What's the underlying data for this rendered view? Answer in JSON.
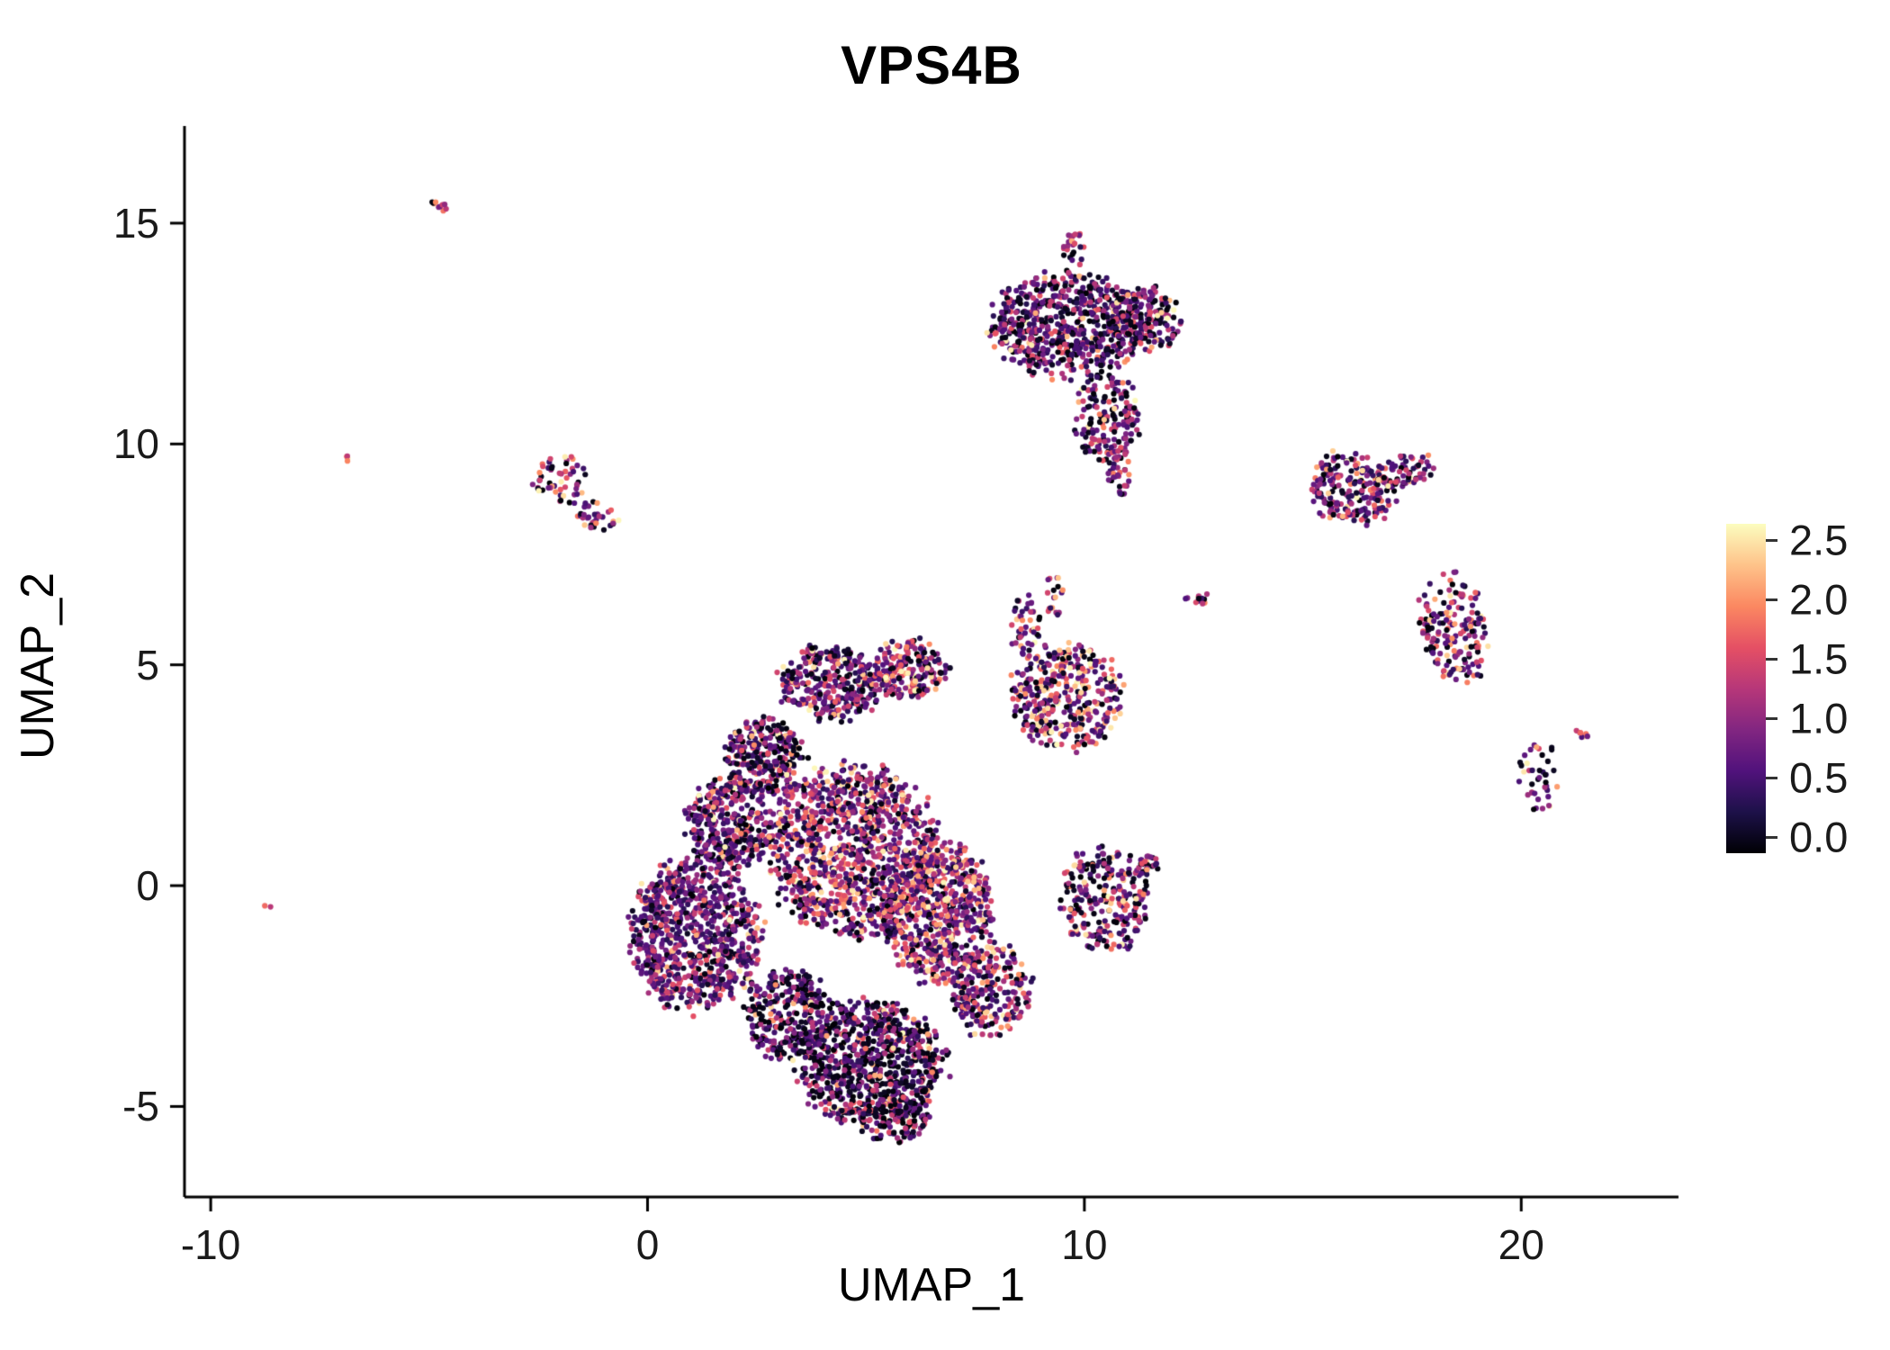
{
  "title": "VPS4B",
  "axes": {
    "x": {
      "label": "UMAP_1",
      "ticks": [
        {
          "value": -10,
          "label": "-10"
        },
        {
          "value": 0,
          "label": "0"
        },
        {
          "value": 10,
          "label": "10"
        },
        {
          "value": 20,
          "label": "20"
        }
      ]
    },
    "y": {
      "label": "UMAP_2",
      "ticks": [
        {
          "value": -5,
          "label": "-5"
        },
        {
          "value": 0,
          "label": "0"
        },
        {
          "value": 5,
          "label": "5"
        },
        {
          "value": 10,
          "label": "10"
        },
        {
          "value": 15,
          "label": "15"
        }
      ]
    }
  },
  "legend": {
    "min": 0.0,
    "max": 2.5,
    "tick_labels": [
      "2.5",
      "2.0",
      "1.5",
      "1.0",
      "0.5",
      "0.0"
    ],
    "tick_values": [
      2.5,
      2.0,
      1.5,
      1.0,
      0.5,
      0.0
    ]
  },
  "colormap": [
    [
      0.0,
      "#000004"
    ],
    [
      0.125,
      "#1d1149"
    ],
    [
      0.25,
      "#51127c"
    ],
    [
      0.375,
      "#822681"
    ],
    [
      0.5,
      "#b73779"
    ],
    [
      0.625,
      "#e55064"
    ],
    [
      0.75,
      "#fb8861"
    ],
    [
      0.875,
      "#fec38a"
    ],
    [
      1.0,
      "#fcfdbf"
    ]
  ],
  "chart_data": {
    "type": "scatter",
    "title": "VPS4B",
    "xlabel": "UMAP_1",
    "ylabel": "UMAP_2",
    "xlim": [
      -10.6,
      23.6
    ],
    "ylim": [
      -7.05,
      17.2
    ],
    "grid": false,
    "legend_position": "right",
    "color_scale": {
      "name": "magma",
      "domain": [
        0.0,
        2.5
      ],
      "ticks": [
        0.0,
        0.5,
        1.0,
        1.5,
        2.0,
        2.5
      ]
    },
    "point_radius_px": 3.1,
    "clusters": [
      {
        "id": "streak-top-left",
        "cx": -4.75,
        "cy": 15.4,
        "rx": 0.28,
        "ry": 0.09,
        "rot": -35,
        "n": 10,
        "mix": {
          "zero": 0.05,
          "low": 0.15,
          "mid": 0.4,
          "high": 0.4
        }
      },
      {
        "id": "dot-left-upper",
        "cx": -6.85,
        "cy": 9.7,
        "rx": 0.12,
        "ry": 0.1,
        "rot": 0,
        "n": 4,
        "mix": {
          "zero": 0.0,
          "low": 0.1,
          "mid": 0.5,
          "high": 0.4
        }
      },
      {
        "id": "dot-left-lower",
        "cx": -8.7,
        "cy": -0.45,
        "rx": 0.08,
        "ry": 0.06,
        "rot": 0,
        "n": 2,
        "mix": {
          "zero": 0.0,
          "low": 0.0,
          "mid": 0.7,
          "high": 0.3
        }
      },
      {
        "id": "small-left-a",
        "cx": -1.95,
        "cy": 9.2,
        "rx": 0.65,
        "ry": 0.55,
        "rot": 20,
        "n": 55,
        "mix": {
          "zero": 0.2,
          "low": 0.3,
          "mid": 0.3,
          "high": 0.2
        }
      },
      {
        "id": "small-left-b",
        "cx": -1.15,
        "cy": 8.35,
        "rx": 0.45,
        "ry": 0.35,
        "rot": 0,
        "n": 35,
        "mix": {
          "zero": 0.15,
          "low": 0.3,
          "mid": 0.35,
          "high": 0.2
        }
      },
      {
        "id": "top-main",
        "cx": 9.6,
        "cy": 12.7,
        "rx": 1.75,
        "ry": 1.15,
        "rot": 0,
        "n": 650,
        "mix": {
          "zero": 0.3,
          "low": 0.35,
          "mid": 0.28,
          "high": 0.07
        }
      },
      {
        "id": "top-right",
        "cx": 11.4,
        "cy": 12.8,
        "rx": 0.8,
        "ry": 0.75,
        "rot": 0,
        "n": 160,
        "mix": {
          "zero": 0.35,
          "low": 0.3,
          "mid": 0.28,
          "high": 0.07
        }
      },
      {
        "id": "top-lower-ext",
        "cx": 10.5,
        "cy": 10.6,
        "rx": 0.75,
        "ry": 1.0,
        "rot": 0,
        "n": 170,
        "mix": {
          "zero": 0.3,
          "low": 0.3,
          "mid": 0.3,
          "high": 0.1
        }
      },
      {
        "id": "top-spur",
        "cx": 9.75,
        "cy": 14.4,
        "rx": 0.25,
        "ry": 0.45,
        "rot": 0,
        "n": 25,
        "mix": {
          "zero": 0.2,
          "low": 0.3,
          "mid": 0.4,
          "high": 0.1
        }
      },
      {
        "id": "top-tail",
        "cx": 10.85,
        "cy": 9.3,
        "rx": 0.3,
        "ry": 0.5,
        "rot": 0,
        "n": 30,
        "mix": {
          "zero": 0.25,
          "low": 0.35,
          "mid": 0.3,
          "high": 0.1
        }
      },
      {
        "id": "streak-mid",
        "cx": 12.6,
        "cy": 6.5,
        "rx": 0.4,
        "ry": 0.12,
        "rot": 5,
        "n": 12,
        "mix": {
          "zero": 0.05,
          "low": 0.2,
          "mid": 0.45,
          "high": 0.3
        }
      },
      {
        "id": "right-upper",
        "cx": 16.1,
        "cy": 9.0,
        "rx": 1.0,
        "ry": 0.8,
        "rot": -15,
        "n": 200,
        "mix": {
          "zero": 0.18,
          "low": 0.32,
          "mid": 0.33,
          "high": 0.17
        }
      },
      {
        "id": "right-upper-arm",
        "cx": 17.3,
        "cy": 9.4,
        "rx": 0.8,
        "ry": 0.4,
        "rot": 15,
        "n": 70,
        "mix": {
          "zero": 0.18,
          "low": 0.32,
          "mid": 0.33,
          "high": 0.17
        }
      },
      {
        "id": "right-mid",
        "cx": 18.45,
        "cy": 5.8,
        "rx": 0.75,
        "ry": 1.25,
        "rot": 10,
        "n": 170,
        "mix": {
          "zero": 0.2,
          "low": 0.33,
          "mid": 0.32,
          "high": 0.15
        }
      },
      {
        "id": "right-lower-sparse",
        "cx": 20.4,
        "cy": 2.4,
        "rx": 0.45,
        "ry": 0.85,
        "rot": 0,
        "n": 40,
        "mix": {
          "zero": 0.25,
          "low": 0.3,
          "mid": 0.3,
          "high": 0.15
        }
      },
      {
        "id": "right-streak",
        "cx": 21.35,
        "cy": 3.45,
        "rx": 0.25,
        "ry": 0.08,
        "rot": -35,
        "n": 8,
        "mix": {
          "zero": 0.0,
          "low": 0.1,
          "mid": 0.4,
          "high": 0.5
        }
      },
      {
        "id": "mid-right-upper",
        "cx": 9.6,
        "cy": 4.3,
        "rx": 1.25,
        "ry": 1.2,
        "rot": 0,
        "n": 380,
        "mix": {
          "zero": 0.15,
          "low": 0.27,
          "mid": 0.33,
          "high": 0.25
        }
      },
      {
        "id": "mid-right-spur",
        "cx": 8.65,
        "cy": 5.9,
        "rx": 0.35,
        "ry": 0.75,
        "rot": 0,
        "n": 45,
        "mix": {
          "zero": 0.1,
          "low": 0.3,
          "mid": 0.4,
          "high": 0.2
        }
      },
      {
        "id": "sparse-band",
        "cx": 9.3,
        "cy": 6.6,
        "rx": 0.25,
        "ry": 0.5,
        "rot": 0,
        "n": 18,
        "mix": {
          "zero": 0.1,
          "low": 0.3,
          "mid": 0.4,
          "high": 0.2
        }
      },
      {
        "id": "mid-right-lower",
        "cx": 10.45,
        "cy": -0.35,
        "rx": 0.95,
        "ry": 1.15,
        "rot": 15,
        "n": 260,
        "mix": {
          "zero": 0.25,
          "low": 0.3,
          "mid": 0.3,
          "high": 0.15
        }
      },
      {
        "id": "mid-right-lower-arm",
        "cx": 11.3,
        "cy": 0.45,
        "rx": 0.4,
        "ry": 0.3,
        "rot": 0,
        "n": 35,
        "mix": {
          "zero": 0.25,
          "low": 0.3,
          "mid": 0.3,
          "high": 0.15
        }
      },
      {
        "id": "main-left-lobe",
        "cx": 1.1,
        "cy": -1.1,
        "rx": 1.45,
        "ry": 1.7,
        "rot": 0,
        "n": 850,
        "mix": {
          "zero": 0.12,
          "low": 0.5,
          "mid": 0.32,
          "high": 0.06
        }
      },
      {
        "id": "main-left-top",
        "cx": 1.9,
        "cy": 1.4,
        "rx": 1.0,
        "ry": 1.0,
        "rot": 0,
        "n": 350,
        "mix": {
          "zero": 0.2,
          "low": 0.42,
          "mid": 0.3,
          "high": 0.08
        }
      },
      {
        "id": "main-upper-left-dark",
        "cx": 2.7,
        "cy": 2.9,
        "rx": 0.9,
        "ry": 0.9,
        "rot": 0,
        "n": 300,
        "mix": {
          "zero": 0.35,
          "low": 0.3,
          "mid": 0.27,
          "high": 0.08
        }
      },
      {
        "id": "main-top-lobe-a",
        "cx": 4.2,
        "cy": 4.6,
        "rx": 1.15,
        "ry": 0.85,
        "rot": 0,
        "n": 320,
        "mix": {
          "zero": 0.22,
          "low": 0.33,
          "mid": 0.33,
          "high": 0.12
        }
      },
      {
        "id": "main-top-lobe-b",
        "cx": 6.0,
        "cy": 4.9,
        "rx": 0.9,
        "ry": 0.65,
        "rot": 0,
        "n": 200,
        "mix": {
          "zero": 0.15,
          "low": 0.3,
          "mid": 0.37,
          "high": 0.18
        }
      },
      {
        "id": "main-core",
        "cx": 4.7,
        "cy": 0.8,
        "rx": 1.9,
        "ry": 1.9,
        "rot": 0,
        "n": 1100,
        "mix": {
          "zero": 0.15,
          "low": 0.33,
          "mid": 0.36,
          "high": 0.16
        }
      },
      {
        "id": "main-right-core",
        "cx": 6.7,
        "cy": -0.6,
        "rx": 1.3,
        "ry": 1.6,
        "rot": 0,
        "n": 650,
        "mix": {
          "zero": 0.12,
          "low": 0.28,
          "mid": 0.38,
          "high": 0.22
        }
      },
      {
        "id": "main-bottom-dark",
        "cx": 5.1,
        "cy": -4.0,
        "rx": 1.7,
        "ry": 1.35,
        "rot": 0,
        "n": 800,
        "mix": {
          "zero": 0.42,
          "low": 0.3,
          "mid": 0.22,
          "high": 0.06
        }
      },
      {
        "id": "main-bottom-left",
        "cx": 3.2,
        "cy": -2.9,
        "rx": 1.0,
        "ry": 1.0,
        "rot": 0,
        "n": 300,
        "mix": {
          "zero": 0.3,
          "low": 0.38,
          "mid": 0.26,
          "high": 0.06
        }
      },
      {
        "id": "main-right-arm",
        "cx": 7.9,
        "cy": -2.4,
        "rx": 0.85,
        "ry": 1.05,
        "rot": -20,
        "n": 230,
        "mix": {
          "zero": 0.22,
          "low": 0.3,
          "mid": 0.32,
          "high": 0.16
        }
      },
      {
        "id": "main-bottom-tail",
        "cx": 5.6,
        "cy": -5.3,
        "rx": 0.8,
        "ry": 0.5,
        "rot": 0,
        "n": 120,
        "mix": {
          "zero": 0.45,
          "low": 0.28,
          "mid": 0.22,
          "high": 0.05
        }
      }
    ]
  }
}
